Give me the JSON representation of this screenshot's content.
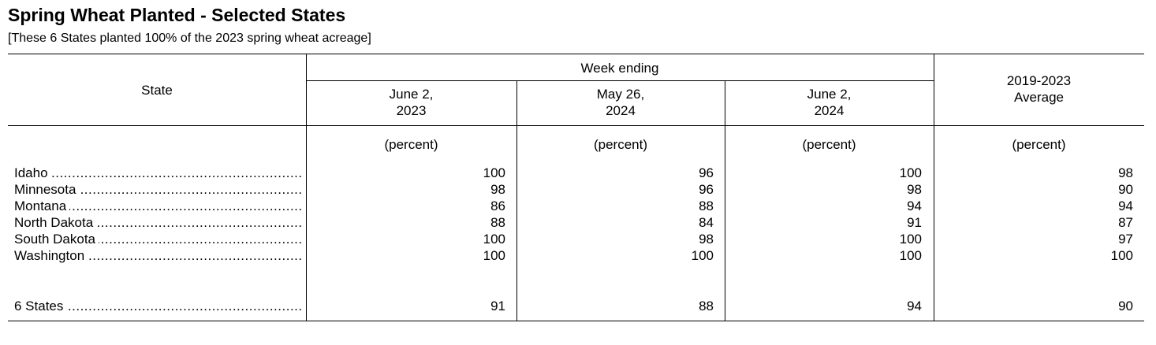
{
  "title": "Spring Wheat Planted - Selected States",
  "subtitle": "[These 6 States planted 100% of the 2023 spring wheat acreage]",
  "headers": {
    "state": "State",
    "week_ending": "Week ending",
    "col1": [
      "June 2,",
      "2023"
    ],
    "col2": [
      "May 26,",
      "2024"
    ],
    "col3": [
      "June 2,",
      "2024"
    ],
    "col4": [
      "2019-2023",
      "Average"
    ]
  },
  "unit": "(percent)",
  "rows": [
    {
      "state": "Idaho",
      "values": [
        "100",
        "96",
        "100",
        "98"
      ]
    },
    {
      "state": "Minnesota",
      "values": [
        "98",
        "96",
        "98",
        "90"
      ]
    },
    {
      "state": "Montana",
      "values": [
        "86",
        "88",
        "94",
        "94"
      ]
    },
    {
      "state": "North Dakota",
      "values": [
        "88",
        "84",
        "91",
        "87"
      ]
    },
    {
      "state": "South Dakota",
      "values": [
        "100",
        "98",
        "100",
        "97"
      ]
    },
    {
      "state": "Washington",
      "values": [
        "100",
        "100",
        "100",
        "100"
      ]
    }
  ],
  "total": {
    "state": "6 States",
    "values": [
      "91",
      "88",
      "94",
      "90"
    ]
  }
}
